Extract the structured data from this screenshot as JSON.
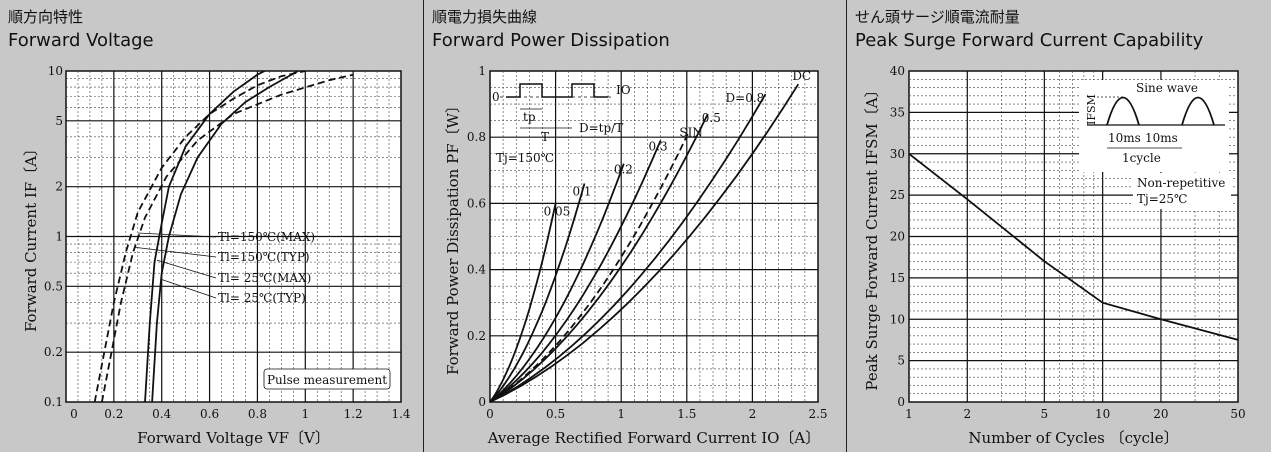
{
  "panels": [
    {
      "title_jp": "順方向特性",
      "title_en": "Forward Voltage"
    },
    {
      "title_jp": "順電力損失曲線",
      "title_en": "Forward Power Dissipation"
    },
    {
      "title_jp": "せん頭サージ順電流耐量",
      "title_en": "Peak Surge Forward Current Capability"
    }
  ],
  "chart_data": [
    {
      "type": "line",
      "title": "Forward Voltage",
      "xlabel": "Forward Voltage  VF〔V〕",
      "ylabel": "Forward Current  IF〔A〕",
      "xlim": [
        0,
        1.4
      ],
      "ylim": [
        0.1,
        10
      ],
      "y_scale": "log",
      "x_ticks": [
        "0",
        "0.2",
        "0.4",
        "0.6",
        "0.8",
        "1",
        "1.2",
        "1.4"
      ],
      "y_ticks": [
        {
          "v": 0.1,
          "label": "0.1"
        },
        {
          "v": 0.2,
          "label": "0.2"
        },
        {
          "v": 0.5,
          "label": "0.5"
        },
        {
          "v": 1,
          "label": "1"
        },
        {
          "v": 2,
          "label": "2"
        },
        {
          "v": 5,
          "label": "5"
        },
        {
          "v": 10,
          "label": "10"
        }
      ],
      "series": [
        {
          "name": "Tl=150℃(MAX)",
          "dash": true,
          "points": [
            [
              0.12,
              0.1
            ],
            [
              0.16,
              0.2
            ],
            [
              0.2,
              0.4
            ],
            [
              0.25,
              0.8
            ],
            [
              0.3,
              1.4
            ],
            [
              0.4,
              2.6
            ],
            [
              0.5,
              4.0
            ],
            [
              0.6,
              5.5
            ],
            [
              0.7,
              6.8
            ],
            [
              0.8,
              8.2
            ],
            [
              0.9,
              9.3
            ],
            [
              1.0,
              10
            ]
          ]
        },
        {
          "name": "Tl=150℃(TYP)",
          "dash": true,
          "points": [
            [
              0.15,
              0.1
            ],
            [
              0.19,
              0.2
            ],
            [
              0.23,
              0.4
            ],
            [
              0.28,
              0.8
            ],
            [
              0.33,
              1.3
            ],
            [
              0.42,
              2.3
            ],
            [
              0.55,
              3.8
            ],
            [
              0.7,
              5.5
            ],
            [
              0.9,
              7.2
            ],
            [
              1.1,
              8.8
            ],
            [
              1.2,
              9.5
            ]
          ]
        },
        {
          "name": "Tl= 25℃(MAX)",
          "dash": false,
          "points": [
            [
              0.33,
              0.1
            ],
            [
              0.35,
              0.3
            ],
            [
              0.37,
              0.7
            ],
            [
              0.4,
              1.2
            ],
            [
              0.43,
              2.0
            ],
            [
              0.5,
              3.5
            ],
            [
              0.6,
              5.5
            ],
            [
              0.7,
              7.5
            ],
            [
              0.8,
              9.5
            ],
            [
              0.83,
              10
            ]
          ]
        },
        {
          "name": "Tl= 25℃(TYP)",
          "dash": false,
          "points": [
            [
              0.36,
              0.1
            ],
            [
              0.38,
              0.3
            ],
            [
              0.4,
              0.6
            ],
            [
              0.43,
              1.0
            ],
            [
              0.48,
              1.8
            ],
            [
              0.55,
              3.0
            ],
            [
              0.65,
              4.8
            ],
            [
              0.75,
              6.5
            ],
            [
              0.85,
              8.0
            ],
            [
              0.97,
              10
            ]
          ]
        }
      ],
      "legend_labels": [
        "Tl=150℃(MAX)",
        "Tl=150℃(TYP)",
        "Tl= 25℃(MAX)",
        "Tl= 25℃(TYP)"
      ],
      "note": "Pulse measurement"
    },
    {
      "type": "line",
      "title": "Forward Power Dissipation",
      "xlabel": "Average Rectified Forward Current  IO〔A〕",
      "ylabel": "Forward Power Dissipation  PF〔W〕",
      "xlim": [
        0,
        2.5
      ],
      "ylim": [
        0,
        1
      ],
      "x_ticks": [
        "0",
        "0.5",
        "1",
        "1.5",
        "2",
        "2.5"
      ],
      "y_ticks": [
        "0",
        "0.2",
        "0.4",
        "0.6",
        "0.8",
        "1"
      ],
      "series": [
        {
          "name": "0.05",
          "dash": false,
          "end": [
            0.5,
            0.6
          ]
        },
        {
          "name": "0.1",
          "dash": false,
          "end": [
            0.72,
            0.66
          ]
        },
        {
          "name": "0.2",
          "dash": false,
          "end": [
            1.02,
            0.72
          ]
        },
        {
          "name": "0.3",
          "dash": false,
          "end": [
            1.3,
            0.79
          ]
        },
        {
          "name": "SIN",
          "dash": true,
          "end": [
            1.52,
            0.82
          ]
        },
        {
          "name": "0.5",
          "dash": false,
          "end": [
            1.66,
            0.87
          ]
        },
        {
          "name": "D=0.8",
          "dash": false,
          "end": [
            2.1,
            0.93
          ]
        },
        {
          "name": "DC",
          "dash": false,
          "end": [
            2.35,
            0.96
          ]
        }
      ],
      "inset": {
        "zero": "0",
        "io": "IO",
        "tp": "tp",
        "T": "T",
        "duty": "D=tp/T"
      },
      "tj": "Tj=150℃"
    },
    {
      "type": "line",
      "title": "Peak Surge Forward Current Capability",
      "xlabel": "Number of Cycles 〔cycle〕",
      "ylabel": "Peak Surge Forward Current  IFSM〔A〕",
      "xlim": [
        1,
        50
      ],
      "ylim": [
        0,
        40
      ],
      "x_scale": "log",
      "x_ticks": [
        {
          "v": 1,
          "label": "1"
        },
        {
          "v": 2,
          "label": "2"
        },
        {
          "v": 5,
          "label": "5"
        },
        {
          "v": 10,
          "label": "10"
        },
        {
          "v": 20,
          "label": "20"
        },
        {
          "v": 50,
          "label": "50"
        }
      ],
      "y_ticks": [
        "0",
        "5",
        "10",
        "15",
        "20",
        "25",
        "30",
        "35",
        "40"
      ],
      "series": [
        {
          "name": "IFSM",
          "dash": false,
          "points": [
            [
              1,
              30
            ],
            [
              2,
              24.5
            ],
            [
              5,
              17
            ],
            [
              10,
              12
            ],
            [
              20,
              10
            ],
            [
              50,
              7.5
            ]
          ]
        }
      ],
      "inset": {
        "sine": "Sine wave",
        "ifsm": "IFSM",
        "ms1": "10ms",
        "ms2": "10ms",
        "cycle": "1cycle"
      },
      "note1": "Non-repetitive",
      "note2": "Tj=25℃"
    }
  ]
}
